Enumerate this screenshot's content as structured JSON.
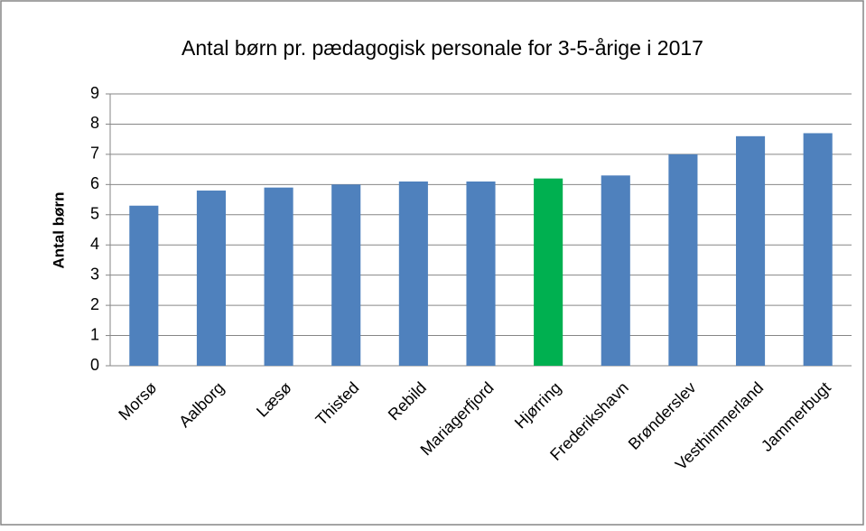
{
  "chart_data": {
    "type": "bar",
    "title": "Antal børn pr. pædagogisk personale for 3-5-årige i 2017",
    "y_label": "Antal børn",
    "categories": [
      "Morsø",
      "Aalborg",
      "Læsø",
      "Thisted",
      "Rebild",
      "Mariagerfjord",
      "Hjørring",
      "Frederikshavn",
      "Brønderslev",
      "Vesthimmerland",
      "Jammerbugt"
    ],
    "values": [
      5.3,
      5.8,
      5.9,
      6.0,
      6.1,
      6.1,
      6.2,
      6.3,
      7.0,
      7.6,
      7.7
    ],
    "colors": [
      "#4f81bd",
      "#4f81bd",
      "#4f81bd",
      "#4f81bd",
      "#4f81bd",
      "#4f81bd",
      "#00b050",
      "#4f81bd",
      "#4f81bd",
      "#4f81bd",
      "#4f81bd"
    ],
    "ylim": [
      0,
      9
    ],
    "yticks": [
      0,
      1,
      2,
      3,
      4,
      5,
      6,
      7,
      8,
      9
    ],
    "grid": true
  }
}
